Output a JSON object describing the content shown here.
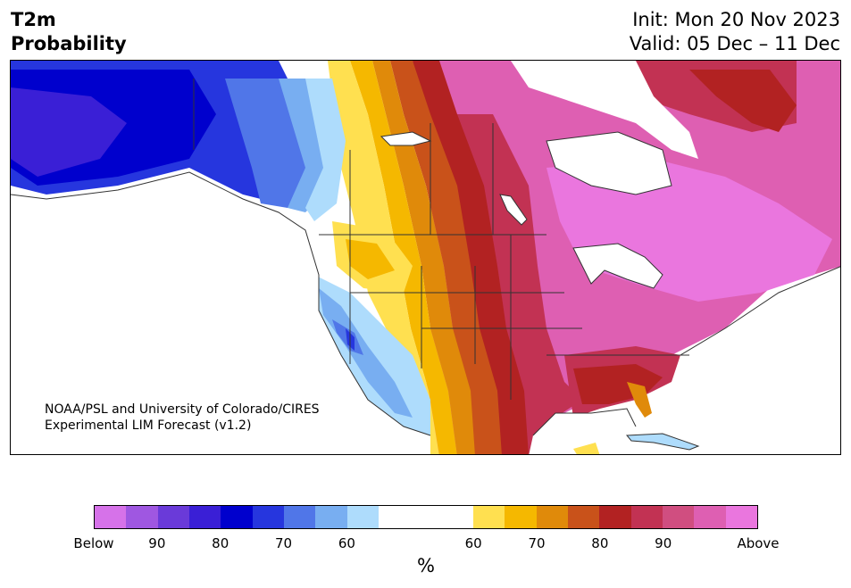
{
  "header": {
    "title_line1": "T2m",
    "title_line2": "Probability",
    "init": "Init: Mon 20 Nov 2023",
    "valid": "Valid: 05 Dec – 11 Dec"
  },
  "map": {
    "credit_line1": "NOAA/PSL and University of Colorado/CIRES",
    "credit_line2": "Experimental LIM Forecast (v1.2)"
  },
  "legend": {
    "unit": "%",
    "ticks": [
      "Below",
      "90",
      "80",
      "70",
      "60",
      "60",
      "70",
      "80",
      "90",
      "Above"
    ],
    "below_colors": [
      "#d672e9",
      "#9f57e1",
      "#6a3ad9",
      "#3a1fd6",
      "#0000cd",
      "#2636de",
      "#5076e8",
      "#78aef1",
      "#aedcfc"
    ],
    "neutral_color": "#ffffff",
    "above_colors": [
      "#ffe050",
      "#f5b800",
      "#e08a0a",
      "#c9521a",
      "#b22222",
      "#c23253",
      "#d04e80",
      "#de5fb2",
      "#ea76de"
    ]
  }
}
